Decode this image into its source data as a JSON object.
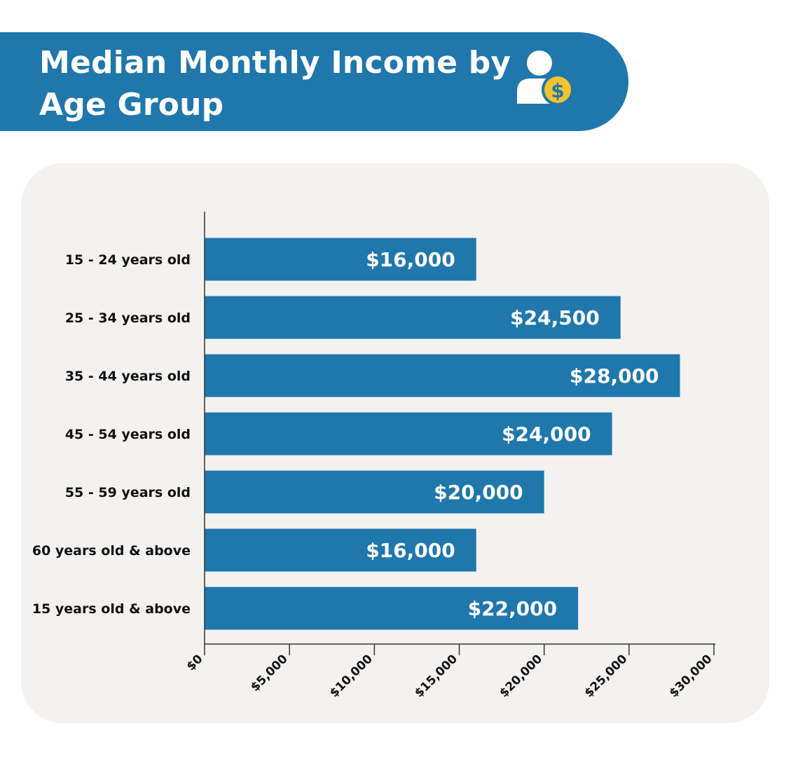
{
  "header": {
    "title_line1": "Median Monthly Income by",
    "title_line2": "Age Group",
    "icon": "person-dollar-icon"
  },
  "colors": {
    "bar": "#1f77ac",
    "banner": "#1f77ac",
    "panel": "#f3f2f1",
    "coin": "#f2c230",
    "axis": "#333333"
  },
  "chart_data": {
    "type": "bar",
    "orientation": "horizontal",
    "title": "Median Monthly Income by Age Group",
    "categories": [
      "15 - 24 years old",
      "25 - 34 years old",
      "35 - 44 years old",
      "45 - 54 years old",
      "55 - 59 years old",
      "60 years old & above",
      "15 years old & above"
    ],
    "values": [
      16000,
      24500,
      28000,
      24000,
      20000,
      16000,
      22000
    ],
    "value_labels": [
      "$16,000",
      "$24,500",
      "$28,000",
      "$24,000",
      "$20,000",
      "$16,000",
      "$22,000"
    ],
    "xlim": [
      0,
      30000
    ],
    "xticks": [
      0,
      5000,
      10000,
      15000,
      20000,
      25000,
      30000
    ],
    "xtick_labels": [
      "$0",
      "$5,000",
      "$10,000",
      "$15,000",
      "$20,000",
      "$25,000",
      "$30,000"
    ],
    "xlabel": "",
    "ylabel": "",
    "grid": false
  }
}
